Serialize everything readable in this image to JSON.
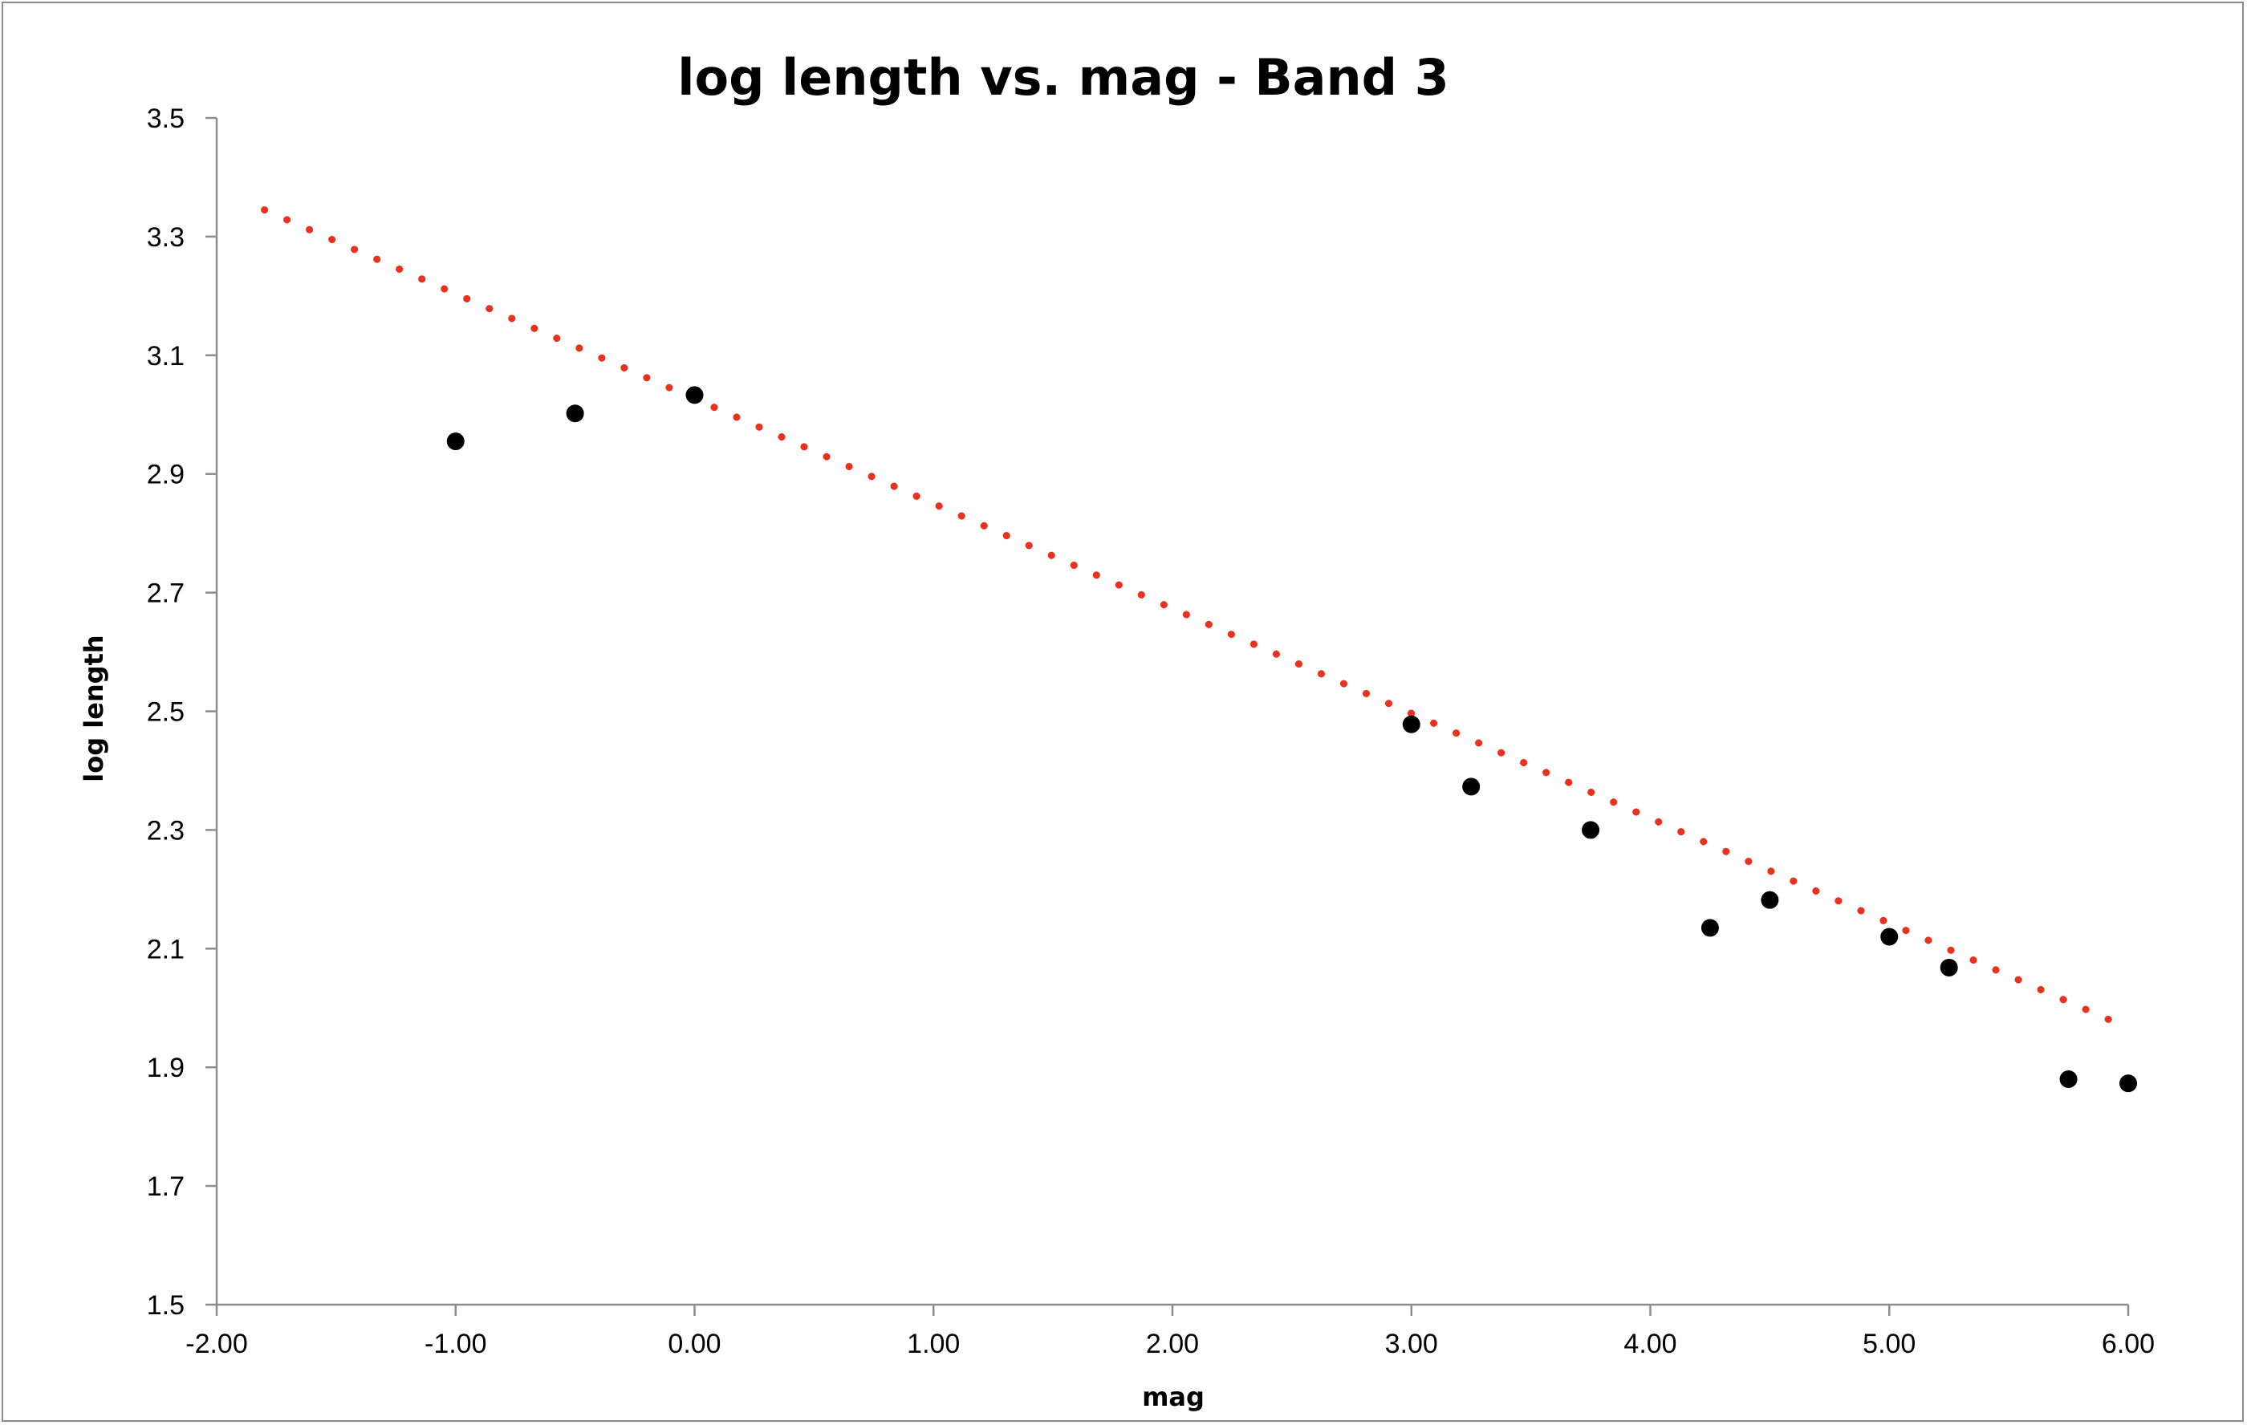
{
  "chart_data": {
    "type": "scatter",
    "title": "log length vs. mag - Band 3",
    "xlabel": "mag",
    "ylabel": "log length",
    "xlim": [
      -2,
      6
    ],
    "ylim": [
      1.5,
      3.5
    ],
    "x_ticks": [
      "-2.00",
      "-1.00",
      "0.00",
      "1.00",
      "2.00",
      "3.00",
      "4.00",
      "5.00",
      "6.00"
    ],
    "y_ticks": [
      "1.5",
      "1.7",
      "1.9",
      "2.1",
      "2.3",
      "2.5",
      "2.7",
      "2.9",
      "3.1",
      "3.3",
      "3.5"
    ],
    "grid": false,
    "legend": "none",
    "series": [
      {
        "marker_color": "#000000",
        "points": [
          {
            "x": -1.0,
            "y": 2.955
          },
          {
            "x": -0.5,
            "y": 3.002
          },
          {
            "x": 0.0,
            "y": 3.033
          },
          {
            "x": 3.0,
            "y": 2.478
          },
          {
            "x": 3.25,
            "y": 2.373
          },
          {
            "x": 3.75,
            "y": 2.3
          },
          {
            "x": 4.25,
            "y": 2.135
          },
          {
            "x": 4.5,
            "y": 2.182
          },
          {
            "x": 5.0,
            "y": 2.12
          },
          {
            "x": 5.25,
            "y": 2.068
          },
          {
            "x": 5.75,
            "y": 1.88
          },
          {
            "x": 6.0,
            "y": 1.873
          }
        ]
      }
    ],
    "trendline": {
      "type": "linear",
      "style": "dotted",
      "color": "#e8321e",
      "x_start": -1.8,
      "y_start": 3.345,
      "x_end": 5.95,
      "y_end": 1.975
    }
  }
}
